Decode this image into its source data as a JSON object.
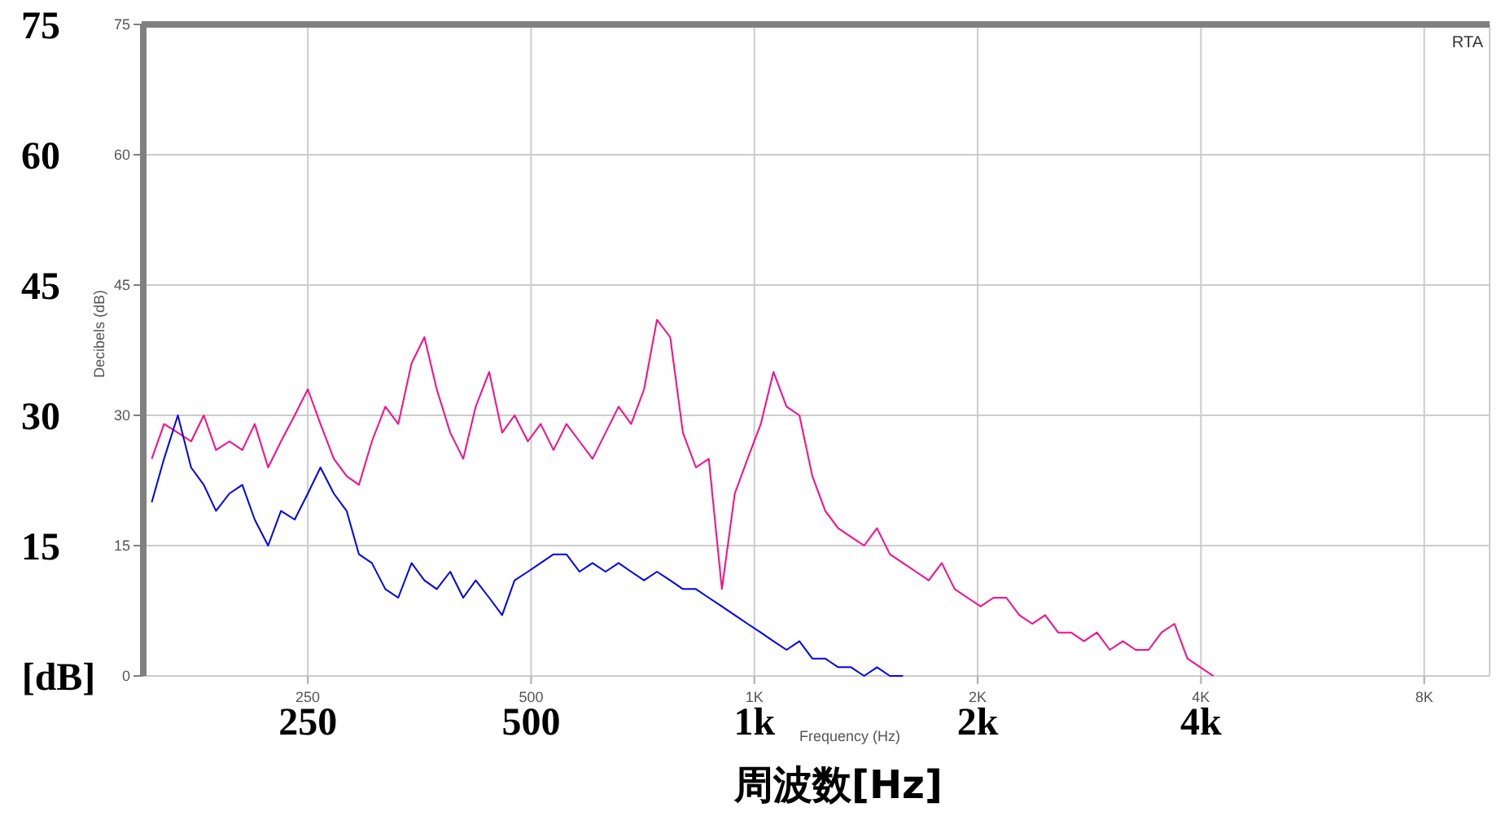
{
  "chart_data": {
    "type": "line",
    "title": "RTA",
    "xlabel": "Frequency (Hz)",
    "ylabel": "Decibels (dB)",
    "annotations": [
      "250",
      "500",
      "1k",
      "2k",
      "4k",
      "周波数[Hz]"
    ],
    "y2label": "[dB]",
    "log": "x",
    "grid": true,
    "line_style": "solid",
    "xlim": [
      150,
      9800
    ],
    "xticks": [
      250,
      500,
      {
        "value": 1000,
        "label": "1K"
      },
      {
        "value": 2000,
        "label": "2K"
      },
      {
        "value": 4000,
        "label": "4K"
      },
      {
        "value": 8000,
        "label": "8K"
      }
    ],
    "ylim": [
      0,
      75
    ],
    "yticks": [
      0,
      15,
      30,
      45,
      60,
      75
    ],
    "y2lim": [
      0,
      75
    ],
    "y2ticks": [
      15,
      30,
      45,
      60,
      75
    ],
    "x": [
      154,
      160,
      167,
      174,
      181,
      188,
      196,
      204,
      212,
      221,
      230,
      240,
      250,
      260,
      271,
      282,
      293,
      305,
      318,
      331,
      345,
      359,
      373,
      389,
      405,
      421,
      439,
      457,
      475,
      495,
      515,
      536,
      558,
      581,
      605,
      630,
      656,
      682,
      710,
      739,
      770,
      801,
      834,
      868,
      904,
      941,
      979,
      1020,
      1061,
      1105,
      1150,
      1197,
      1246,
      1297,
      1350,
      1406,
      1463,
      1523,
      1586,
      1651,
      1718,
      1789,
      1862,
      1938,
      2018,
      2100,
      2186,
      2276,
      2369,
      2466,
      2567,
      2672,
      2782,
      2896,
      3014,
      3138,
      3266,
      3400,
      3539,
      3684,
      3835,
      3992,
      4156
    ],
    "series": [
      {
        "color": "#ff0a8c",
        "values": [
          25,
          29,
          28,
          27,
          30,
          26,
          27,
          26,
          29,
          24,
          27,
          30,
          33,
          29,
          25,
          23,
          22,
          27,
          31,
          29,
          36,
          39,
          33,
          28,
          25,
          31,
          35,
          28,
          30,
          27,
          29,
          26,
          29,
          27,
          25,
          28,
          31,
          29,
          33,
          41,
          39,
          28,
          24,
          25,
          10,
          21,
          25,
          29,
          35,
          31,
          30,
          23,
          19,
          17,
          16,
          15,
          17,
          14,
          13,
          12,
          11,
          13,
          10,
          9,
          8,
          9,
          9,
          7,
          6,
          7,
          5,
          5,
          4,
          5,
          3,
          4,
          3,
          3,
          5,
          6,
          2,
          1,
          0
        ]
      },
      {
        "color": "#0000ff",
        "values": [
          20,
          25,
          30,
          24,
          22,
          19,
          21,
          22,
          18,
          15,
          19,
          18,
          21,
          24,
          21,
          19,
          14,
          13,
          10,
          9,
          13,
          11,
          10,
          12,
          9,
          11,
          9,
          7,
          11,
          12,
          13,
          14,
          14,
          12,
          13,
          12,
          13,
          12,
          11,
          12,
          11,
          10,
          10,
          9,
          8,
          7,
          6,
          5,
          4,
          3,
          4,
          2,
          2,
          1,
          1,
          0,
          1,
          0,
          0,
          null,
          null,
          null,
          null,
          null,
          null,
          null,
          null,
          null,
          null,
          null,
          null,
          null,
          null,
          null,
          null,
          null,
          null,
          null,
          null,
          null,
          null,
          null,
          null
        ]
      }
    ]
  }
}
